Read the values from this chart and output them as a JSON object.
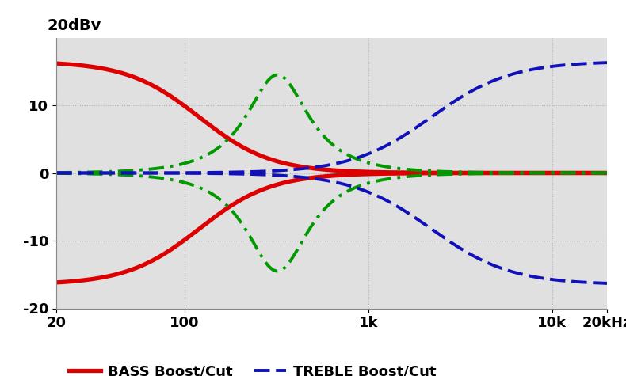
{
  "ylabel_text": "20dBv",
  "ylim": [
    -20,
    20
  ],
  "yticks": [
    -20,
    -10,
    0,
    10
  ],
  "xlim_log": [
    20,
    20000
  ],
  "xtick_positions": [
    20,
    100,
    1000,
    10000,
    20000
  ],
  "xtick_labels": [
    "20",
    "100",
    "1k",
    "10k",
    "20kHz"
  ],
  "background_color": "#e0e0e0",
  "grid_color": "#b0b0b0",
  "bass_color": "#dd0000",
  "mid_color": "#009900",
  "treble_color": "#1111bb",
  "bass_lw": 3.8,
  "mid_lw": 2.8,
  "treble_lw": 2.8,
  "bass_fc": 120,
  "bass_gain": 16.5,
  "bass_slope": 2.2,
  "mid_fc": 320,
  "mid_gain": 14.5,
  "mid_Q": 1.1,
  "treble_fc": 2200,
  "treble_gain": 16.5,
  "treble_slope": 2.0
}
